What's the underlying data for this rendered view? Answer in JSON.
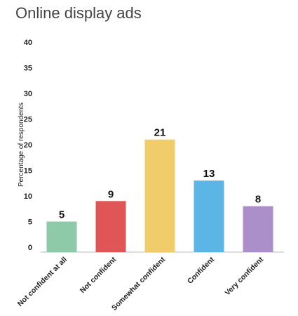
{
  "title": "Online display ads",
  "chart_data": {
    "type": "bar",
    "title": "Online display ads",
    "xlabel": "",
    "ylabel": "Percentage of respondents",
    "ylim": [
      0,
      40
    ],
    "yticks": [
      0,
      5,
      10,
      15,
      20,
      25,
      30,
      35,
      40
    ],
    "grid": false,
    "categories": [
      "Not confident at all",
      "Not confident",
      "Somewhat confident",
      "Confident",
      "Very confident"
    ],
    "values": [
      5,
      9,
      21,
      13,
      8
    ],
    "colors": [
      "#8ec9a8",
      "#e05556",
      "#f0cd6a",
      "#5bb6e6",
      "#ab8fc9"
    ]
  }
}
